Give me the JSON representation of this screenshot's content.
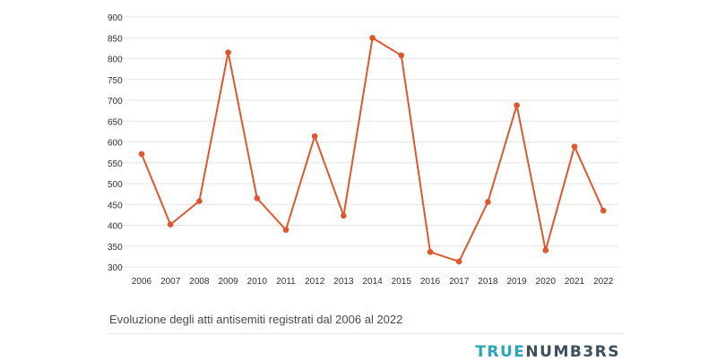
{
  "chart_data": {
    "type": "line",
    "x": [
      "2006",
      "2007",
      "2008",
      "2009",
      "2010",
      "2011",
      "2012",
      "2013",
      "2014",
      "2015",
      "2016",
      "2017",
      "2018",
      "2019",
      "2020",
      "2021",
      "2022"
    ],
    "series": [
      {
        "values": [
          571,
          402,
          458,
          815,
          465,
          389,
          614,
          423,
          850,
          808,
          336,
          313,
          456,
          688,
          340,
          589,
          435
        ]
      }
    ],
    "yticks": [
      300,
      350,
      400,
      450,
      500,
      550,
      600,
      650,
      700,
      750,
      800,
      850,
      900
    ],
    "ylim": [
      300,
      900
    ],
    "grid": true,
    "colors": {
      "line": "#e0572e",
      "grid": "#e6e6e6"
    }
  },
  "caption": "Evoluzione degli atti antisemiti registrati dal 2006 al 2022",
  "brand": {
    "part1": "TRUE",
    "part2": "NUMB3RS"
  }
}
